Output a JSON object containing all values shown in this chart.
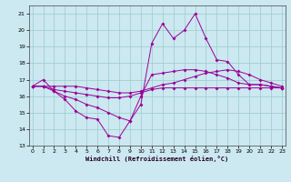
{
  "title": "",
  "xlabel": "Windchill (Refroidissement éolien,°C)",
  "x": [
    0,
    1,
    2,
    3,
    4,
    5,
    6,
    7,
    8,
    9,
    10,
    11,
    12,
    13,
    14,
    15,
    16,
    17,
    18,
    19,
    20,
    21,
    22,
    23
  ],
  "line1": [
    16.6,
    17.0,
    16.3,
    15.8,
    15.1,
    14.7,
    14.6,
    13.6,
    13.5,
    14.5,
    15.5,
    19.2,
    20.4,
    19.5,
    20.0,
    21.0,
    19.5,
    18.2,
    18.1,
    17.3,
    16.7,
    16.7,
    16.6,
    16.5
  ],
  "line2": [
    16.6,
    16.6,
    16.6,
    16.6,
    16.6,
    16.5,
    16.4,
    16.3,
    16.2,
    16.2,
    16.3,
    16.5,
    16.7,
    16.8,
    17.0,
    17.2,
    17.4,
    17.5,
    17.6,
    17.5,
    17.3,
    17.0,
    16.8,
    16.6
  ],
  "line3": [
    16.6,
    16.6,
    16.4,
    16.3,
    16.2,
    16.1,
    16.0,
    15.9,
    15.9,
    16.0,
    16.2,
    16.4,
    16.5,
    16.5,
    16.5,
    16.5,
    16.5,
    16.5,
    16.5,
    16.5,
    16.5,
    16.5,
    16.5,
    16.5
  ],
  "line4": [
    16.6,
    16.6,
    16.3,
    16.0,
    15.8,
    15.5,
    15.3,
    15.0,
    14.7,
    14.5,
    16.0,
    17.3,
    17.4,
    17.5,
    17.6,
    17.6,
    17.5,
    17.3,
    17.1,
    16.8,
    16.7,
    16.7,
    16.6,
    16.5
  ],
  "line_color": "#990099",
  "bg_color": "#cce8f0",
  "grid_color": "#99cccc",
  "ylim": [
    13,
    21.5
  ],
  "yticks": [
    13,
    14,
    15,
    16,
    17,
    18,
    19,
    20,
    21
  ],
  "xticks": [
    0,
    1,
    2,
    3,
    4,
    5,
    6,
    7,
    8,
    9,
    10,
    11,
    12,
    13,
    14,
    15,
    16,
    17,
    18,
    19,
    20,
    21,
    22,
    23
  ],
  "xlim": [
    -0.3,
    23.3
  ]
}
